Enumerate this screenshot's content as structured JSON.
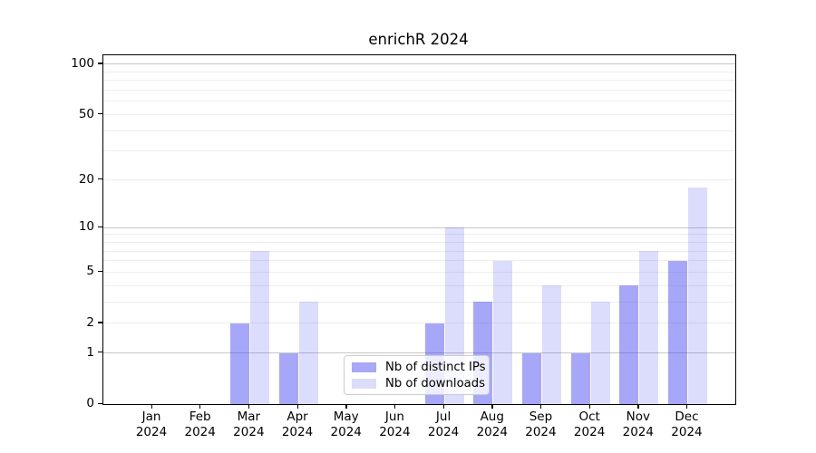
{
  "chart_data": {
    "type": "bar",
    "title": "enrichR 2024",
    "year_label": "2024",
    "categories": [
      "Jan",
      "Feb",
      "Mar",
      "Apr",
      "May",
      "Jun",
      "Jul",
      "Aug",
      "Sep",
      "Oct",
      "Nov",
      "Dec"
    ],
    "series": [
      {
        "name": "Nb of distinct IPs",
        "swatch_color": "#a8a8f8",
        "fill_color": "rgba(60,60,242,0.45)",
        "values": [
          0,
          0,
          2,
          1,
          0,
          0,
          2,
          3,
          1,
          1,
          4,
          6
        ]
      },
      {
        "name": "Nb of downloads",
        "swatch_color": "#dcdcfb",
        "fill_color": "rgba(60,60,242,0.18)",
        "values": [
          0,
          0,
          7,
          3,
          0,
          0,
          10,
          6,
          4,
          3,
          7,
          18
        ]
      }
    ],
    "yscale": "log10(1+y)",
    "ylim": [
      0,
      113
    ],
    "yticks": [
      0,
      1,
      2,
      5,
      10,
      20,
      50,
      100
    ],
    "grid_major_values": [
      1,
      10,
      100
    ],
    "grid_minor_values": [
      2,
      3,
      4,
      5,
      6,
      7,
      8,
      9,
      20,
      30,
      40,
      50,
      60,
      70,
      80,
      90
    ],
    "grid": "both",
    "legend_position": "lower center",
    "colors": {
      "axis": "#000000",
      "grid_major": "#c7c7c7",
      "grid_minor": "#ededed",
      "background": "#ffffff"
    }
  }
}
